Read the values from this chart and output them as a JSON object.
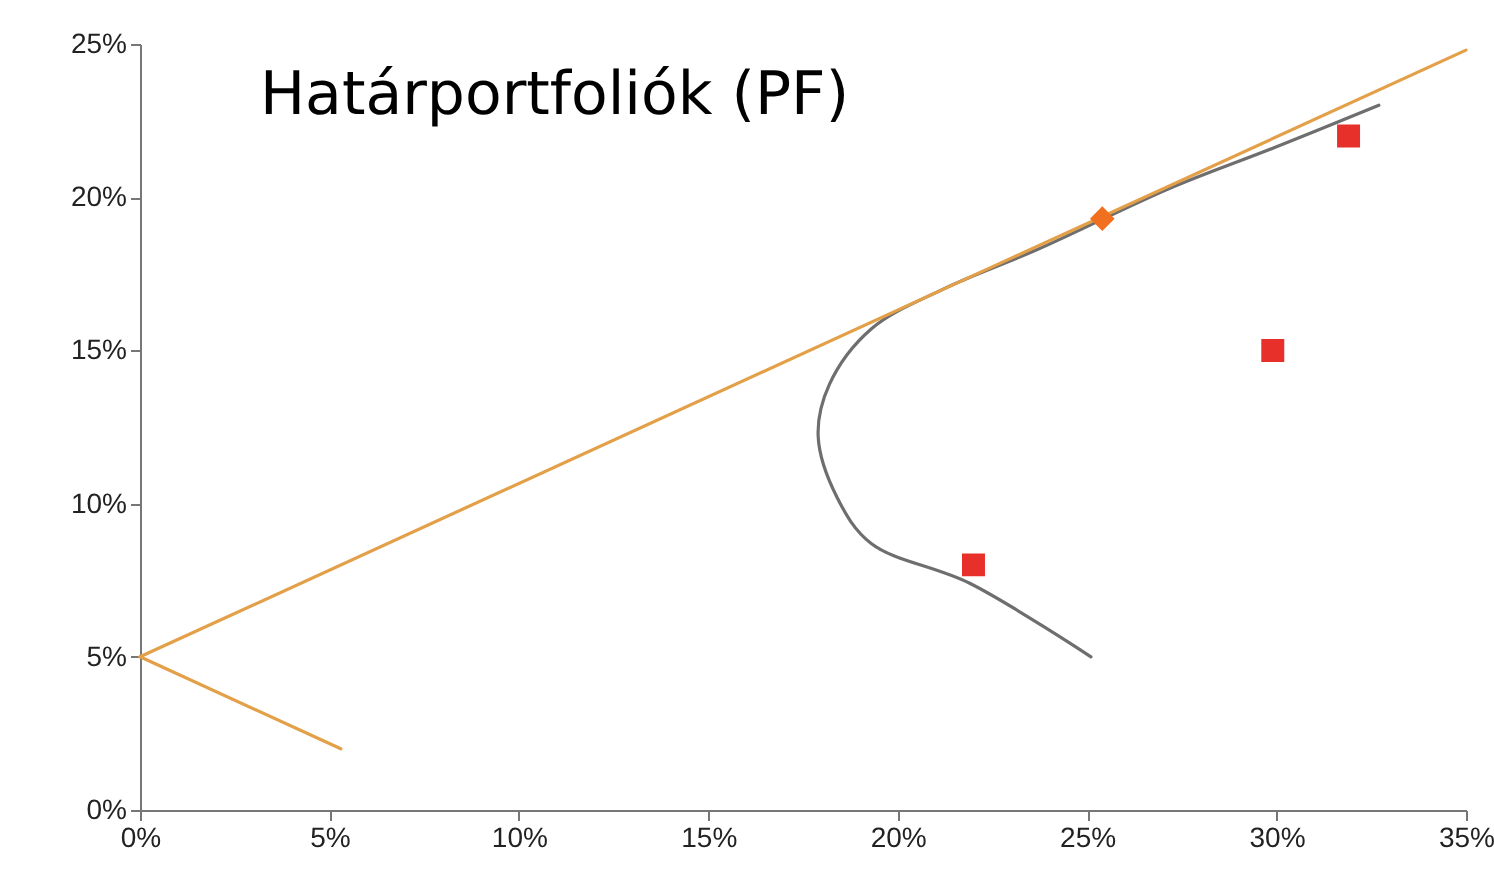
{
  "chart_data": {
    "type": "line",
    "title": "Határportfoliók (PF)",
    "xlim": [
      0,
      35
    ],
    "xticks": [
      {
        "value": 0,
        "label": "0%"
      },
      {
        "value": 5,
        "label": "5%"
      },
      {
        "value": 10,
        "label": "10%"
      },
      {
        "value": 15,
        "label": "15%"
      },
      {
        "value": 20,
        "label": "20%"
      },
      {
        "value": 25,
        "label": "25%"
      },
      {
        "value": 30,
        "label": "30%"
      },
      {
        "value": 35,
        "label": "35%"
      }
    ],
    "ylim": [
      0,
      25
    ],
    "yticks": [
      {
        "value": 0,
        "label": "0%"
      },
      {
        "value": 5,
        "label": "5%"
      },
      {
        "value": 10,
        "label": "10%"
      },
      {
        "value": 15,
        "label": "15%"
      },
      {
        "value": 20,
        "label": "20%"
      },
      {
        "value": 25,
        "label": "25%"
      }
    ],
    "grid": false,
    "series": [
      {
        "type": "line",
        "color": "#6e6e6e",
        "marker": "none",
        "x": [
          25.1,
          21.9,
          19.3,
          18.4,
          17.9,
          18.2,
          19.3,
          21.2,
          23.7,
          27.2,
          29.9,
          32.7
        ],
        "values": [
          5.0,
          7.4,
          8.7,
          10.2,
          12.2,
          13.9,
          15.7,
          17.0,
          18.3,
          20.3,
          21.6,
          23.0
        ]
      },
      {
        "type": "line",
        "color": "#e3a048",
        "marker": "none",
        "x": [
          0,
          35
        ],
        "values": [
          5,
          24.8
        ]
      },
      {
        "type": "line",
        "color": "#e3a048",
        "marker": "none",
        "x": [
          0,
          5.3
        ],
        "values": [
          5,
          2.0
        ]
      },
      {
        "type": "scatter",
        "color": "#e8302a",
        "marker": "square",
        "x": [
          22.0,
          29.9,
          31.9
        ],
        "values": [
          8.0,
          15.0,
          22.0
        ]
      },
      {
        "type": "scatter",
        "color": "#f07020",
        "marker": "diamond",
        "x": [
          25.4
        ],
        "values": [
          19.3
        ]
      }
    ]
  }
}
